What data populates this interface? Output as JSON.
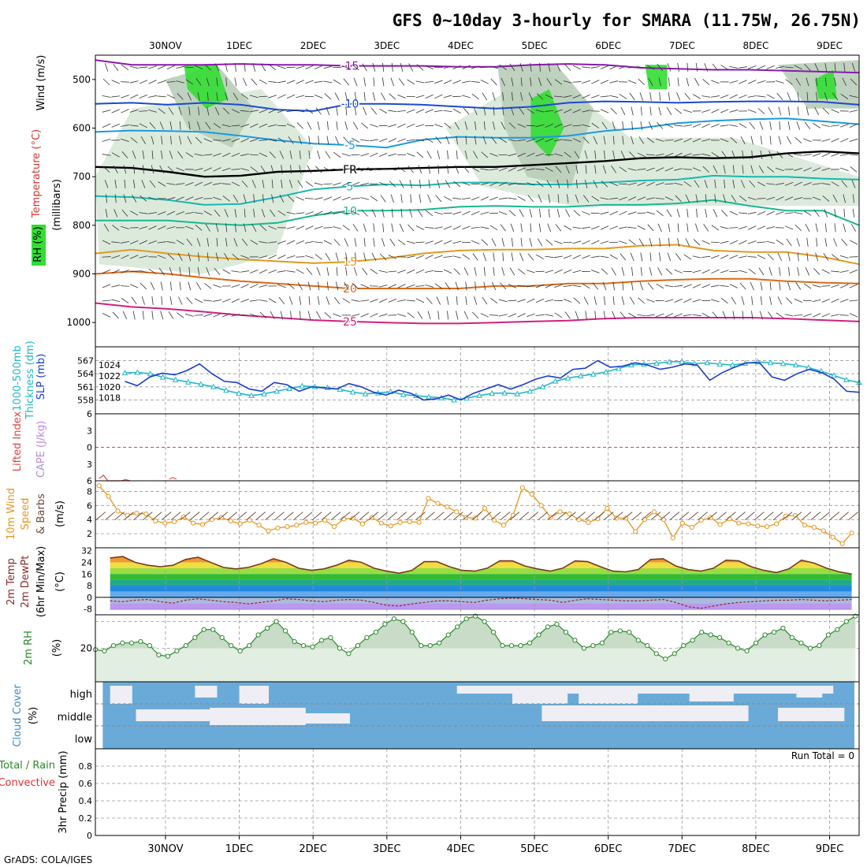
{
  "title": "GFS 0~10day 3-hourly for SMARA (11.75W, 26.75N)",
  "credit": "GrADS: COLA/IGES",
  "date_labels": [
    {
      "label": "30NOV",
      "t": 0.5
    },
    {
      "label": "1DEC",
      "t": 1.5
    },
    {
      "label": "2DEC",
      "t": 2.5
    },
    {
      "label": "3DEC",
      "t": 3.5
    },
    {
      "label": "4DEC",
      "t": 4.5
    },
    {
      "label": "5DEC",
      "t": 5.5
    },
    {
      "label": "6DEC",
      "t": 6.5
    },
    {
      "label": "7DEC",
      "t": 7.5
    },
    {
      "label": "8DEC",
      "t": 8.5
    },
    {
      "label": "9DEC",
      "t": 9.5
    }
  ],
  "panel_labels": {
    "upper": [
      "Wind (m/s)",
      "Temperature (°C)",
      "RH (%)",
      "(millibars)"
    ],
    "pressure": [
      "1000-500mb",
      "Thickness (dm)",
      "SLP (mb)"
    ],
    "stability": [
      "Lifted Index",
      "CAPE (J/kg)"
    ],
    "wind": [
      "10m Wind",
      "Speed",
      "& Barbs",
      "(m/s)"
    ],
    "temp": [
      "2m Temp",
      "2m DewPt",
      "(6hr Min/Max)",
      "(°C)"
    ],
    "rh": [
      "2m RH",
      "(%)"
    ],
    "cloud": [
      "Cloud Cover",
      "(%)"
    ],
    "precip": [
      "Total / Rain",
      "Convective",
      "3hr Precip (mm)"
    ]
  },
  "run_total": "Run Total = 0",
  "colors": {
    "thickness": "#22b8c8",
    "slp": "#1a3ccf",
    "wind_speed": "#e8961e",
    "temp_line": "#7a3a1a",
    "dewpoint": "#8b2a2a",
    "rh_line": "#2a8a2a",
    "cloud": "#6aaad8",
    "rh_green": "#33dd33",
    "lifted_index": "#dd4444"
  },
  "chart_data": [
    {
      "type": "heatmap",
      "title": "Upper-air cross section",
      "ylabel": "millibars",
      "yticks": [
        500,
        600,
        700,
        800,
        900,
        1000
      ],
      "ylim": [
        1050,
        450
      ],
      "isotherms": [
        {
          "label": "-15",
          "color": "#8a1aaa",
          "y": [
            460,
            470,
            470,
            470,
            468,
            470,
            470,
            472,
            472,
            472,
            474,
            474,
            470,
            468,
            470,
            476,
            478,
            480,
            480,
            482,
            484,
            486
          ]
        },
        {
          "label": "-10",
          "color": "#1a4ad0",
          "y": [
            550,
            548,
            552,
            548,
            552,
            562,
            565,
            550,
            550,
            552,
            556,
            560,
            556,
            548,
            545,
            546,
            548,
            546,
            545,
            545,
            546,
            552
          ]
        },
        {
          "label": "-5",
          "color": "#1a9ae0",
          "y": [
            608,
            605,
            606,
            608,
            616,
            625,
            632,
            635,
            640,
            624,
            618,
            620,
            620,
            616,
            606,
            600,
            590,
            585,
            582,
            580,
            586,
            592
          ]
        },
        {
          "label": "FR",
          "color": "#000000",
          "y": [
            680,
            682,
            690,
            700,
            698,
            690,
            688,
            685,
            684,
            682,
            680,
            680,
            676,
            672,
            668,
            662,
            660,
            662,
            660,
            652,
            648,
            652
          ]
        },
        {
          "label": "5",
          "color": "#18b8b0",
          "y": [
            740,
            742,
            748,
            758,
            756,
            742,
            726,
            720,
            716,
            718,
            712,
            712,
            716,
            716,
            712,
            708,
            706,
            698,
            700,
            700,
            704,
            706
          ]
        },
        {
          "label": "10",
          "color": "#18b890",
          "y": [
            790,
            790,
            790,
            796,
            800,
            795,
            780,
            770,
            770,
            768,
            762,
            760,
            762,
            762,
            758,
            758,
            755,
            748,
            760,
            770,
            770,
            800
          ]
        },
        {
          "label": "15",
          "color": "#e09a20",
          "y": [
            858,
            850,
            858,
            865,
            870,
            874,
            878,
            875,
            868,
            858,
            852,
            850,
            850,
            848,
            848,
            842,
            840,
            852,
            855,
            855,
            865,
            880
          ]
        },
        {
          "label": "20",
          "color": "#d86a18",
          "y": [
            900,
            895,
            900,
            908,
            915,
            920,
            925,
            930,
            930,
            930,
            930,
            925,
            925,
            920,
            920,
            915,
            912,
            910,
            910,
            915,
            918,
            920
          ]
        },
        {
          "label": "25",
          "color": "#d02080",
          "y": [
            960,
            968,
            972,
            978,
            985,
            990,
            995,
            998,
            1000,
            1002,
            1002,
            1000,
            998,
            996,
            992,
            990,
            990,
            990,
            990,
            992,
            995,
            998
          ]
        }
      ]
    },
    {
      "type": "line",
      "title": "",
      "yticks_left": [
        558,
        561,
        564,
        567
      ],
      "yticks_right": [
        1018,
        1020,
        1022,
        1024
      ],
      "series": [
        {
          "name": "1000-500mb Thickness (dm)",
          "axis": "left",
          "values": [
            564.2,
            564.3,
            564.0,
            563.2,
            562.6,
            562.1,
            561.6,
            561.0,
            560.2,
            559.5,
            559.0,
            559.4,
            560.0,
            560.6,
            561.2,
            561.0,
            560.8,
            560.4,
            559.8,
            559.4,
            559.6,
            559.9,
            559.2,
            559.0,
            558.7,
            558.5,
            558.0,
            558.4,
            559.0,
            559.5,
            559.6,
            559.4,
            560.0,
            561.0,
            562.3,
            563.0,
            563.5,
            563.9,
            564.4,
            565.2,
            566.0,
            566.2,
            566.4,
            566.7,
            566.8,
            566.3,
            566.5,
            566.2,
            566.0,
            566.4,
            566.7,
            566.5,
            566.3,
            566.0,
            565.4,
            564.6,
            563.6,
            562.6,
            562.0
          ]
        },
        {
          "name": "SLP (mb)",
          "axis": "right",
          "values": [
            1021.0,
            1020.2,
            1021.8,
            1022.5,
            1022.2,
            1023.0,
            1024.2,
            1022.4,
            1021.0,
            1020.8,
            1019.6,
            1019.2,
            1020.8,
            1020.4,
            1019.2,
            1020.0,
            1019.8,
            1019.6,
            1020.6,
            1020.0,
            1019.0,
            1018.5,
            1019.4,
            1018.8,
            1017.6,
            1017.8,
            1018.5,
            1017.6,
            1018.8,
            1019.6,
            1020.4,
            1019.6,
            1020.4,
            1021.4,
            1022.0,
            1021.6,
            1023.2,
            1023.4,
            1024.8,
            1023.6,
            1023.8,
            1024.4,
            1024.0,
            1023.2,
            1023.6,
            1024.2,
            1024.0,
            1021.2,
            1022.6,
            1023.6,
            1024.4,
            1024.4,
            1021.8,
            1021.2,
            1022.4,
            1023.2,
            1022.6,
            1021.4,
            1019.2,
            1019.0
          ]
        }
      ]
    },
    {
      "type": "line",
      "title": "",
      "yticks": [
        6,
        3,
        0,
        -3,
        -6
      ],
      "ylim": [
        -6,
        6
      ],
      "series": [
        {
          "name": "Lifted Index",
          "values": [
            5.6,
            5.0,
            6.0,
            6.0,
            6.0,
            6.0,
            5.8,
            6.0
          ]
        }
      ]
    },
    {
      "type": "line",
      "title": "",
      "yticks": [
        2,
        4,
        6,
        8
      ],
      "ylim": [
        0,
        9.5
      ],
      "series": [
        {
          "name": "10m Wind Speed (m/s)",
          "values": [
            8.8,
            7.3,
            5.2,
            4.6,
            4.9,
            4.8,
            3.8,
            3.5,
            3.7,
            4.4,
            3.5,
            3.3,
            4.0,
            4.3,
            3.8,
            3.4,
            3.9,
            3.2,
            2.4,
            2.8,
            3.0,
            3.2,
            3.6,
            3.5,
            3.9,
            3.0,
            4.1,
            4.2,
            3.4,
            4.3,
            3.5,
            3.1,
            3.6,
            3.7,
            3.6,
            7.0,
            6.3,
            5.8,
            5.1,
            4.3,
            4.2,
            5.6,
            3.9,
            3.2,
            4.6,
            8.5,
            7.6,
            6.0,
            4.3,
            5.1,
            4.8,
            4.0,
            3.6,
            4.1,
            5.6,
            4.2,
            4.2,
            2.3,
            4.0,
            5.1,
            4.0,
            1.4,
            3.5,
            2.9,
            3.9,
            4.3,
            3.3,
            4.1,
            3.5,
            3.4,
            3.1,
            3.0,
            3.4,
            4.5,
            4.6,
            3.2,
            2.9,
            2.4,
            1.5,
            0.6,
            2.1
          ]
        }
      ]
    },
    {
      "type": "area",
      "title": "",
      "yticks": [
        -8,
        0,
        8,
        16,
        24,
        32
      ],
      "ylim": [
        -12,
        34
      ],
      "series": [
        {
          "name": "2m Temp",
          "values": [
            27.0,
            28.0,
            24.0,
            22.0,
            21.0,
            22.0,
            26.0,
            27.5,
            24.0,
            20.5,
            19.5,
            20.5,
            23.0,
            26.5,
            24.0,
            20.0,
            18.5,
            19.5,
            22.0,
            25.5,
            24.0,
            20.0,
            18.0,
            16.5,
            18.5,
            24.5,
            24.5,
            21.0,
            18.5,
            18.0,
            20.0,
            25.0,
            25.0,
            21.5,
            19.5,
            18.0,
            20.0,
            25.0,
            24.5,
            21.0,
            18.0,
            17.5,
            19.0,
            26.0,
            26.5,
            21.5,
            19.0,
            18.0,
            20.0,
            25.5,
            25.0,
            21.0,
            18.5,
            17.0,
            19.5,
            25.5,
            23.5,
            20.0,
            17.5,
            16.0
          ]
        },
        {
          "name": "2m DewPt",
          "values": [
            -2.5,
            -3.0,
            -2.0,
            -1.5,
            -3.0,
            -4.0,
            -2.0,
            -1.0,
            -2.0,
            -3.0,
            -3.5,
            -4.5,
            -3.5,
            -2.5,
            -1.0,
            -1.5,
            -2.5,
            -3.0,
            -2.0,
            -1.5,
            -2.0,
            -3.5,
            -5.5,
            -6.0,
            -4.5,
            -3.5,
            -2.5,
            -2.5,
            -3.0,
            -3.5,
            -2.0,
            -1.0,
            -0.5,
            -1.0,
            -1.5,
            -2.0,
            -3.5,
            -2.0,
            -1.0,
            -1.5,
            -2.0,
            -2.5,
            -2.5,
            -2.0,
            -1.5,
            -3.5,
            -6.5,
            -7.5,
            -6.0,
            -4.5,
            -3.5,
            -3.0,
            -2.5,
            -2.0,
            -2.0,
            -1.5,
            -2.0,
            -2.5,
            -2.0,
            -1.5
          ]
        }
      ]
    },
    {
      "type": "area",
      "title": "",
      "yticks": [
        20
      ],
      "ylim": [
        -5,
        45
      ],
      "series": [
        {
          "name": "2m RH (%)",
          "values": [
            19,
            18,
            22,
            24,
            24,
            25,
            22,
            15,
            14,
            18,
            22,
            28,
            34,
            34,
            28,
            22,
            18,
            22,
            30,
            35,
            40,
            33,
            25,
            22,
            21,
            26,
            28,
            20,
            16,
            22,
            28,
            32,
            38,
            42,
            40,
            32,
            22,
            22,
            24,
            30,
            36,
            42,
            44,
            40,
            32,
            22,
            22,
            22,
            24,
            30,
            36,
            38,
            32,
            26,
            20,
            22,
            24,
            32,
            33,
            32,
            26,
            22,
            16,
            12,
            16,
            22,
            26,
            32,
            30,
            28,
            24,
            20,
            18,
            24,
            30,
            32,
            35,
            28,
            24,
            20,
            22,
            30,
            34,
            40,
            44
          ]
        }
      ]
    },
    {
      "type": "area",
      "title": "",
      "categories": [
        "high",
        "middle",
        "low"
      ],
      "yticks": [
        "high",
        "middle",
        "low"
      ]
    },
    {
      "type": "bar",
      "title": "",
      "yticks": [
        0,
        0.2,
        0.4,
        0.6,
        0.8
      ],
      "ylim": [
        0,
        1
      ],
      "values": []
    }
  ]
}
